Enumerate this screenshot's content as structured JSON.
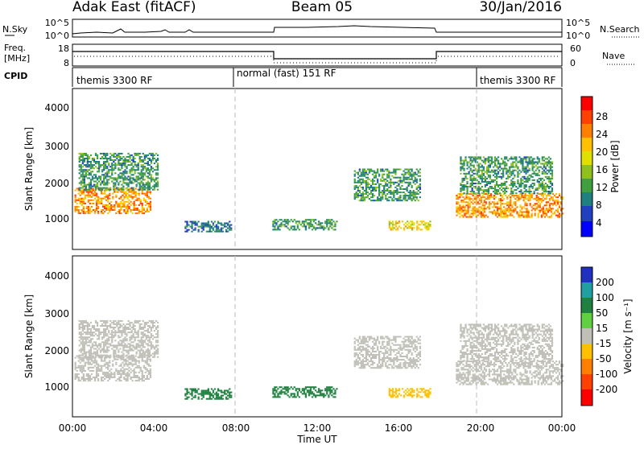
{
  "header": {
    "station": "Adak East (fitACF)",
    "beam": "Beam 05",
    "date": "30/Jan/2016"
  },
  "strips": {
    "nsky_label": "N.Sky",
    "nsearch_label": "N.Search",
    "noise_ticks": [
      "10^5",
      "10^0"
    ],
    "freq_label": "Freq.",
    "freq_unit": "[MHz]",
    "freq_ticks": [
      "18",
      "8"
    ],
    "nave_label": "Nave",
    "nave_ticks": [
      "60",
      "0"
    ],
    "cpid_label": "CPID",
    "cpid_segments": [
      {
        "name": "themis 3300 RF",
        "start_h": 0,
        "end_h": 8
      },
      {
        "name": "normal (fast) 151 RF",
        "start_h": 8,
        "end_h": 20
      },
      {
        "name": "themis 3300 RF",
        "start_h": 20,
        "end_h": 24
      }
    ]
  },
  "chart_data": {
    "type": "heatmap",
    "x_range_h": [
      0,
      24
    ],
    "x_ticks": [
      "00:00",
      "04:00",
      "08:00",
      "12:00",
      "16:00",
      "20:00",
      "00:00"
    ],
    "xlabel": "Time UT",
    "ylabel": "Slant Range [km]",
    "y_range_km": [
      180,
      4600
    ],
    "y_ticks": [
      1000,
      2000,
      3000,
      4000
    ],
    "mode_change_hours": [
      8,
      20
    ],
    "power_panel": {
      "colorbar_label": "Power [dB]",
      "colorbar_ticks": [
        "28",
        "24",
        "20",
        "16",
        "12",
        "8",
        "4"
      ],
      "colorbar_colors": [
        "#ff0000",
        "#ff4000",
        "#ff8000",
        "#ffc000",
        "#e0e000",
        "#90c020",
        "#40a040",
        "#208080",
        "#2040c0",
        "#0000ff"
      ]
    },
    "velocity_panel": {
      "colorbar_label": "Velocity [m s⁻¹]",
      "colorbar_ticks": [
        "200",
        "100",
        "50",
        "15",
        "-15",
        "-50",
        "-100",
        "-200"
      ],
      "colorbar_colors": [
        "#2030c0",
        "#20a0a0",
        "#208040",
        "#60d040",
        "#c0c0b8",
        "#ffc000",
        "#ff8000",
        "#ff4000",
        "#ff0000"
      ]
    },
    "echo_regions": [
      {
        "t0": 0.1,
        "t1": 3.8,
        "r0": 1150,
        "r1": 1850,
        "power": 20,
        "velocity": -5
      },
      {
        "t0": 0.3,
        "t1": 4.2,
        "r0": 1800,
        "r1": 2800,
        "power": 8,
        "velocity": 0
      },
      {
        "t0": 5.5,
        "t1": 7.8,
        "r0": 650,
        "r1": 950,
        "power": 6,
        "velocity": 40
      },
      {
        "t0": 9.8,
        "t1": 13.0,
        "r0": 700,
        "r1": 1000,
        "power": 8,
        "velocity": 40
      },
      {
        "t0": 13.8,
        "t1": 17.0,
        "r0": 1500,
        "r1": 2400,
        "power": 8,
        "velocity": 0
      },
      {
        "t0": 15.5,
        "t1": 17.5,
        "r0": 700,
        "r1": 950,
        "power": 16,
        "velocity": -40
      },
      {
        "t0": 18.8,
        "t1": 24.0,
        "r0": 1050,
        "r1": 1700,
        "power": 20,
        "velocity": -5
      },
      {
        "t0": 19.0,
        "t1": 23.5,
        "r0": 1700,
        "r1": 2700,
        "power": 8,
        "velocity": 0
      }
    ]
  }
}
